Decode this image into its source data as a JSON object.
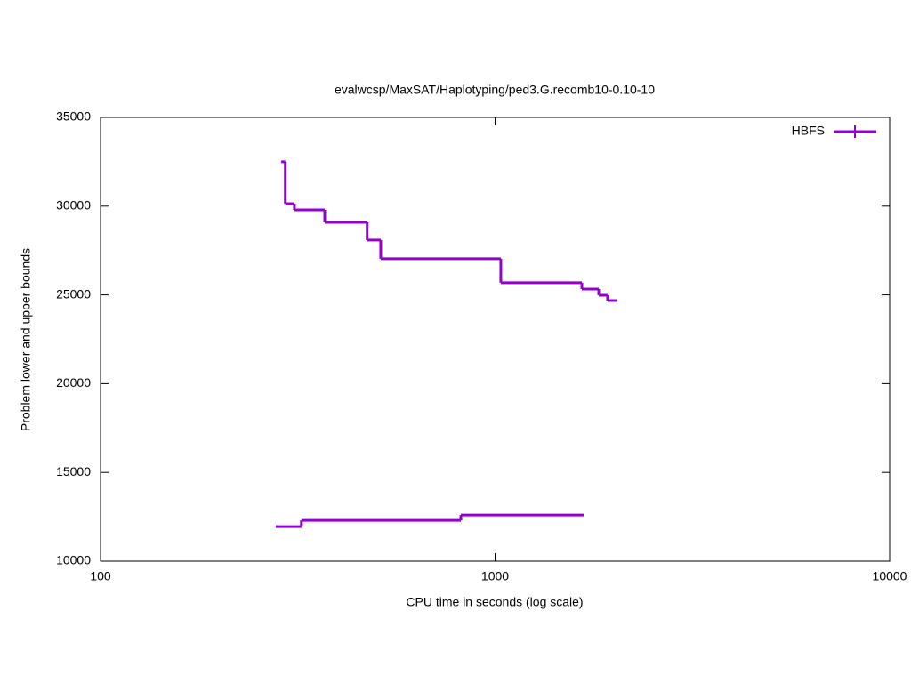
{
  "chart_data": {
    "type": "step",
    "title": "evalwcsp/MaxSAT/Haplotyping/ped3.G.recomb10-0.10-10",
    "x_label": "CPU time in seconds (log scale)",
    "y_label": "Problem lower and upper bounds",
    "x_log": true,
    "xlim": [
      100,
      10000
    ],
    "xticks": [
      100,
      1000,
      10000
    ],
    "ylim": [
      10000,
      35000
    ],
    "yticks": [
      10000,
      15000,
      20000,
      25000,
      30000,
      35000
    ],
    "grid": false,
    "legend": "top-right",
    "series": [
      {
        "name": "HBFS",
        "color": "#9400d3",
        "x": [
          287,
          294,
          310,
          370,
          474,
          513,
          1034,
          1659,
          1831,
          1928,
          2042
        ],
        "values": [
          32500,
          30140,
          29790,
          29090,
          28090,
          27040,
          25690,
          25330,
          24980,
          24680,
          24680
        ]
      },
      {
        "color": "#9400d3",
        "x": [
          278,
          323,
          819,
          1676
        ],
        "values": [
          11950,
          12300,
          12600,
          12600
        ]
      }
    ]
  }
}
